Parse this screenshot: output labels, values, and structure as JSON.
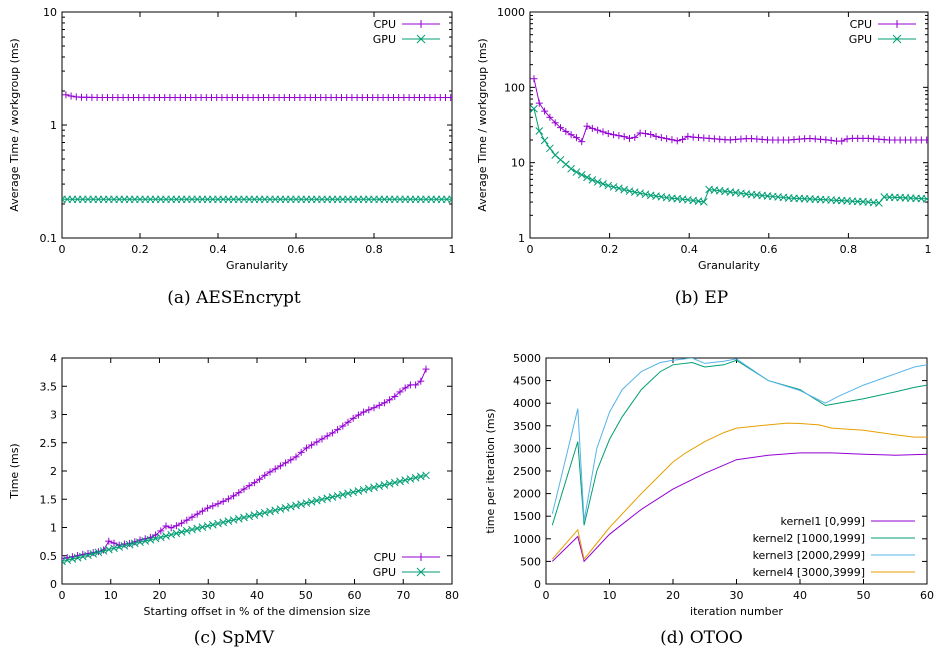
{
  "colors": {
    "cpu": "#9400d3",
    "gpu": "#009e73",
    "kernel1": "#9400d3",
    "kernel2": "#009e73",
    "kernel3": "#56b4e9",
    "kernel4": "#e69f00"
  },
  "chart_data": [
    {
      "id": "a",
      "type": "line",
      "caption": "(a) AESEncrypt",
      "xlabel": "Granularity",
      "ylabel": "Average Time / workgroup (ms)",
      "yscale": "log",
      "xlim": [
        0,
        1
      ],
      "ylim": [
        0.1,
        10
      ],
      "xticks": [
        0,
        0.2,
        0.4,
        0.6,
        0.8,
        1
      ],
      "xtick_labels": [
        "0",
        "0.2",
        "0.4",
        "0.6",
        "0.8",
        "1"
      ],
      "yticks": [
        0.1,
        1,
        10
      ],
      "ytick_labels": [
        "0.1",
        "1",
        "10"
      ],
      "legend": "top-right",
      "grid": false,
      "series": [
        {
          "name": "CPU",
          "marker": "plus",
          "x": [
            0.01,
            0.03,
            0.05,
            0.1,
            0.2,
            0.3,
            0.4,
            0.5,
            0.6,
            0.7,
            0.8,
            0.9,
            1.0
          ],
          "y": [
            1.85,
            1.78,
            1.76,
            1.75,
            1.75,
            1.75,
            1.75,
            1.75,
            1.75,
            1.75,
            1.75,
            1.75,
            1.75
          ]
        },
        {
          "name": "GPU",
          "marker": "x",
          "x": [
            0.0,
            0.2,
            0.4,
            0.6,
            0.8,
            1.0
          ],
          "y": [
            0.22,
            0.22,
            0.22,
            0.22,
            0.22,
            0.22
          ]
        }
      ]
    },
    {
      "id": "b",
      "type": "line",
      "caption": "(b) EP",
      "xlabel": "Granularity",
      "ylabel": "Average Time / workgroup (ms)",
      "yscale": "log",
      "xlim": [
        0,
        1
      ],
      "ylim": [
        1,
        1000
      ],
      "xticks": [
        0,
        0.2,
        0.4,
        0.6,
        0.8,
        1
      ],
      "xtick_labels": [
        "0",
        "0.2",
        "0.4",
        "0.6",
        "0.8",
        "1"
      ],
      "yticks": [
        1,
        10,
        100,
        1000
      ],
      "ytick_labels": [
        "1",
        "10",
        "100",
        "1000"
      ],
      "legend": "top-right",
      "grid": false,
      "series": [
        {
          "name": "CPU",
          "marker": "plus",
          "x": [
            0.01,
            0.02,
            0.04,
            0.06,
            0.08,
            0.1,
            0.12,
            0.13,
            0.14,
            0.16,
            0.18,
            0.2,
            0.22,
            0.24,
            0.26,
            0.27,
            0.3,
            0.32,
            0.34,
            0.36,
            0.38,
            0.39,
            0.4,
            0.45,
            0.5,
            0.55,
            0.6,
            0.65,
            0.7,
            0.75,
            0.78,
            0.8,
            0.85,
            0.9,
            0.95,
            1.0
          ],
          "y": [
            130,
            65,
            45,
            35,
            28,
            24,
            21,
            19,
            31,
            28,
            26,
            24,
            23,
            22,
            20,
            25,
            24,
            22,
            21,
            20,
            19,
            23,
            22,
            21,
            20,
            21,
            20,
            20,
            21,
            20,
            19,
            21,
            21,
            20,
            20,
            20
          ]
        },
        {
          "name": "GPU",
          "marker": "x",
          "x": [
            0.01,
            0.02,
            0.04,
            0.06,
            0.08,
            0.1,
            0.12,
            0.14,
            0.16,
            0.18,
            0.2,
            0.25,
            0.3,
            0.35,
            0.4,
            0.44,
            0.45,
            0.5,
            0.55,
            0.6,
            0.65,
            0.7,
            0.75,
            0.8,
            0.85,
            0.88,
            0.89,
            0.95,
            1.0
          ],
          "y": [
            52,
            28,
            18,
            13,
            10.5,
            8.5,
            7.3,
            6.5,
            5.8,
            5.3,
            4.9,
            4.2,
            3.7,
            3.4,
            3.2,
            3.0,
            4.4,
            4.1,
            3.8,
            3.6,
            3.4,
            3.3,
            3.2,
            3.1,
            3.0,
            2.9,
            3.5,
            3.4,
            3.3
          ]
        }
      ]
    },
    {
      "id": "c",
      "type": "line",
      "caption": "(c) SpMV",
      "xlabel": "Starting offset in % of the dimension size",
      "ylabel": "Time (ms)",
      "yscale": "linear",
      "xlim": [
        0,
        80
      ],
      "ylim": [
        0,
        4
      ],
      "xticks": [
        0,
        10,
        20,
        30,
        40,
        50,
        60,
        70,
        80
      ],
      "xtick_labels": [
        "0",
        "10",
        "20",
        "30",
        "40",
        "50",
        "60",
        "70",
        "80"
      ],
      "yticks": [
        0,
        0.5,
        1,
        1.5,
        2,
        2.5,
        3,
        3.5,
        4
      ],
      "ytick_labels": [
        "0",
        "0.5",
        "1",
        "1.5",
        "2",
        "2.5",
        "3",
        "3.5",
        "4"
      ],
      "legend": "bottom-right",
      "grid": false,
      "series": [
        {
          "name": "CPU",
          "marker": "plus",
          "x": [
            0,
            2,
            4,
            6,
            8,
            9,
            10,
            11,
            12,
            14,
            16,
            18,
            20,
            21,
            22,
            24,
            26,
            28,
            30,
            32,
            34,
            36,
            38,
            40,
            42,
            44,
            46,
            48,
            50,
            52,
            54,
            56,
            58,
            60,
            62,
            64,
            66,
            68,
            70,
            72,
            73,
            74,
            75
          ],
          "y": [
            0.45,
            0.48,
            0.52,
            0.55,
            0.58,
            0.62,
            0.85,
            0.66,
            0.7,
            0.72,
            0.78,
            0.82,
            0.9,
            1.05,
            0.98,
            1.05,
            1.15,
            1.25,
            1.35,
            1.42,
            1.5,
            1.6,
            1.72,
            1.82,
            1.95,
            2.05,
            2.15,
            2.25,
            2.4,
            2.5,
            2.6,
            2.7,
            2.82,
            2.95,
            3.05,
            3.12,
            3.2,
            3.3,
            3.45,
            3.55,
            3.5,
            3.65,
            3.88
          ]
        },
        {
          "name": "GPU",
          "marker": "x",
          "x": [
            0,
            5,
            10,
            15,
            20,
            25,
            30,
            35,
            40,
            45,
            50,
            55,
            60,
            65,
            70,
            75
          ],
          "y": [
            0.4,
            0.5,
            0.62,
            0.72,
            0.82,
            0.93,
            1.03,
            1.13,
            1.23,
            1.33,
            1.43,
            1.53,
            1.63,
            1.73,
            1.83,
            1.93
          ]
        }
      ]
    },
    {
      "id": "d",
      "type": "line",
      "caption": "(d) OTOO",
      "xlabel": "iteration number",
      "ylabel": "time per iteration (ms)",
      "yscale": "linear",
      "xlim": [
        0,
        60
      ],
      "ylim": [
        0,
        5000
      ],
      "xticks": [
        0,
        10,
        20,
        30,
        40,
        50,
        60
      ],
      "xtick_labels": [
        "0",
        "10",
        "20",
        "30",
        "40",
        "50",
        "60"
      ],
      "yticks": [
        0,
        500,
        1000,
        1500,
        2000,
        2500,
        3000,
        3500,
        4000,
        4500,
        5000
      ],
      "ytick_labels": [
        "0",
        "500",
        "1000",
        "1500",
        "2000",
        "2500",
        "3000",
        "3500",
        "4000",
        "4500",
        "5000"
      ],
      "legend": "bottom-right",
      "grid": false,
      "series": [
        {
          "name": "kernel1 [0,999]",
          "x": [
            1,
            5,
            6,
            10,
            15,
            20,
            25,
            30,
            35,
            40,
            45,
            50,
            55,
            60
          ],
          "y": [
            500,
            1050,
            500,
            1100,
            1650,
            2100,
            2450,
            2750,
            2850,
            2900,
            2900,
            2870,
            2850,
            2870
          ]
        },
        {
          "name": "kernel2 [1000,1999]",
          "x": [
            1,
            5,
            6,
            8,
            10,
            12,
            15,
            18,
            20,
            23,
            25,
            28,
            30,
            35,
            40,
            44,
            46,
            50,
            55,
            58,
            60
          ],
          "y": [
            1300,
            3150,
            1300,
            2500,
            3200,
            3700,
            4300,
            4700,
            4850,
            4900,
            4800,
            4850,
            4950,
            4500,
            4300,
            3950,
            4000,
            4100,
            4250,
            4350,
            4400
          ]
        },
        {
          "name": "kernel3 [2000,2999]",
          "x": [
            1,
            5,
            6,
            8,
            10,
            12,
            15,
            18,
            20,
            23,
            25,
            28,
            30,
            35,
            40,
            44,
            46,
            50,
            55,
            58,
            60
          ],
          "y": [
            1550,
            3880,
            1400,
            3000,
            3800,
            4300,
            4700,
            4900,
            4950,
            5000,
            4880,
            4930,
            4980,
            4500,
            4280,
            4000,
            4150,
            4400,
            4650,
            4800,
            4850
          ]
        },
        {
          "name": "kernel4 [3000,3999]",
          "x": [
            1,
            5,
            6,
            10,
            15,
            20,
            22,
            25,
            28,
            30,
            35,
            38,
            40,
            43,
            45,
            50,
            55,
            58,
            60
          ],
          "y": [
            550,
            1200,
            550,
            1250,
            2000,
            2700,
            2900,
            3150,
            3350,
            3450,
            3520,
            3560,
            3550,
            3520,
            3450,
            3400,
            3300,
            3250,
            3250
          ]
        }
      ]
    }
  ]
}
